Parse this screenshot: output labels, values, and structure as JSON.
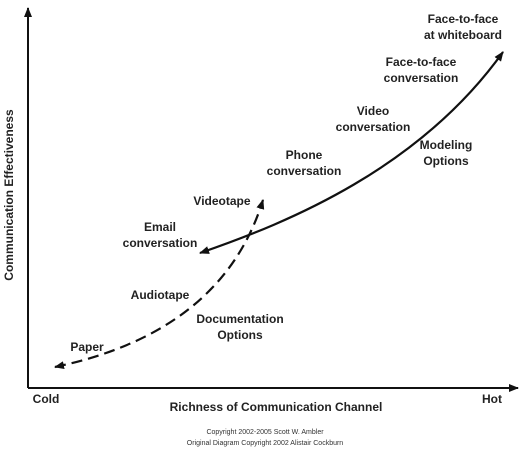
{
  "axes": {
    "y_label": "Communication Effectiveness",
    "x_label": "Richness of Communication Channel",
    "x_start": "Cold",
    "x_end": "Hot"
  },
  "labels": [
    {
      "lines": [
        "Face-to-face",
        "at whiteboard"
      ]
    },
    {
      "lines": [
        "Face-to-face",
        "conversation"
      ]
    },
    {
      "lines": [
        "Video",
        "conversation"
      ]
    },
    {
      "lines": [
        "Modeling",
        "Options"
      ]
    },
    {
      "lines": [
        "Phone",
        "conversation"
      ]
    },
    {
      "lines": [
        "Videotape"
      ]
    },
    {
      "lines": [
        "Email",
        "conversation"
      ]
    },
    {
      "lines": [
        "Audiotape"
      ]
    },
    {
      "lines": [
        "Documentation",
        "Options"
      ]
    },
    {
      "lines": [
        "Paper"
      ]
    }
  ],
  "footer": [
    "Copyright 2002-2005 Scott W. Ambler",
    "Original Diagram Copyright 2002 Alistair Cockburn"
  ]
}
